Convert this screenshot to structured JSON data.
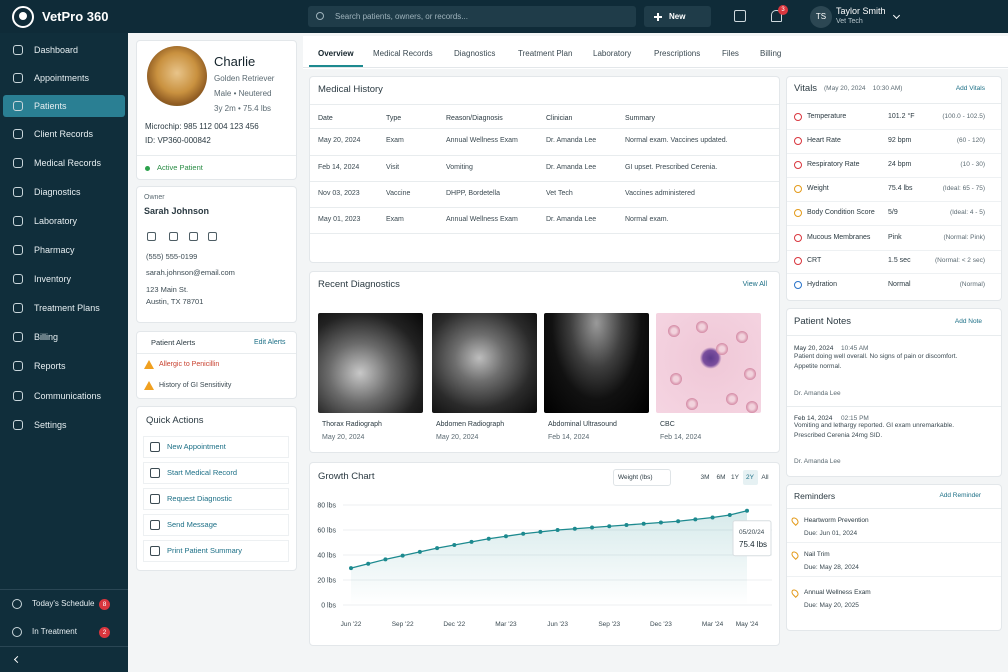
{
  "app": {
    "name": "VetPro 360"
  },
  "topbar": {
    "search_placeholder": "Search patients, owners, or records...",
    "new_button": "New",
    "notifications": 3,
    "user": {
      "initials": "TS",
      "name": "Taylor Smith",
      "role": "Vet Tech"
    }
  },
  "sidebar": {
    "items": [
      "Dashboard",
      "Appointments",
      "Patients",
      "Client Records",
      "Medical Records",
      "Diagnostics",
      "Laboratory",
      "Pharmacy",
      "Inventory",
      "Treatment Plans",
      "Billing",
      "Reports",
      "Communications",
      "Settings"
    ],
    "footer": [
      {
        "label": "Today's Schedule",
        "count": 8
      },
      {
        "label": "In Treatment",
        "count": 2
      }
    ]
  },
  "patient": {
    "name": "Charlie",
    "breed": "Golden Retriever",
    "sex": "Male • Neutered",
    "age_weight": "3y 2m • 75.4 lbs",
    "microchip": "Microchip:  985 112 004 123 456",
    "id": "ID:  VP360-000842",
    "status": "Active Patient"
  },
  "owner": {
    "label": "Owner",
    "name": "Sarah Johnson",
    "phone": "(555) 555-0199",
    "email": "sarah.johnson@email.com",
    "address": [
      "123 Main St.",
      "Austin, TX 78701"
    ]
  },
  "alerts": {
    "title": "Patient Alerts",
    "edit": "Edit Alerts",
    "items": [
      "Allergic to Penicillin",
      "History of GI Sensitivity"
    ]
  },
  "quick_actions": {
    "title": "Quick Actions",
    "items": [
      "New Appointment",
      "Start Medical Record",
      "Request Diagnostic",
      "Send Message",
      "Print Patient Summary"
    ]
  },
  "tabs": [
    "Overview",
    "Medical Records",
    "Diagnostics",
    "Treatment Plan",
    "Laboratory",
    "Prescriptions",
    "Files",
    "Billing"
  ],
  "medical_history": {
    "title": "Medical History",
    "columns": [
      "Date",
      "Type",
      "Reason/Diagnosis",
      "Clinician",
      "Summary"
    ],
    "rows": [
      [
        "May 20, 2024",
        "Exam",
        "Annual Wellness Exam",
        "Dr. Amanda Lee",
        "Normal exam. Vaccines updated."
      ],
      [
        "Feb 14, 2024",
        "Visit",
        "Vomiting",
        "Dr. Amanda Lee",
        "GI upset. Prescribed Cerenia."
      ],
      [
        "Nov 03, 2023",
        "Vaccine",
        "DHPP, Bordetella",
        "Vet Tech",
        "Vaccines administered"
      ],
      [
        "May 01, 2023",
        "Exam",
        "Annual Wellness Exam",
        "Dr. Amanda Lee",
        "Normal exam."
      ]
    ]
  },
  "recent_diagnostics": {
    "title": "Recent Diagnostics",
    "view_all": "View All",
    "items": [
      {
        "name": "Thorax Radiograph",
        "date": "May 20, 2024"
      },
      {
        "name": "Abdomen Radiograph",
        "date": "May 20, 2024"
      },
      {
        "name": "Abdominal Ultrasound",
        "date": "Feb 14, 2024"
      },
      {
        "name": "CBC",
        "date": "Feb 14, 2024"
      }
    ]
  },
  "growth_chart": {
    "title": "Growth Chart",
    "metric": "Weight (lbs)",
    "ranges": [
      "3M",
      "6M",
      "1Y",
      "2Y",
      "All"
    ],
    "tooltip": {
      "date": "05/20/24",
      "value": "75.4 lbs"
    },
    "chart_data": {
      "type": "line",
      "categories": [
        "Jun '22",
        null,
        null,
        "Sep '22",
        null,
        null,
        "Dec '22",
        null,
        null,
        "Mar '23",
        null,
        null,
        "Jun '23",
        null,
        null,
        "Sep '23",
        null,
        null,
        "Dec '23",
        null,
        null,
        "Mar '24",
        null,
        "May '24"
      ],
      "values": [
        29.5,
        33,
        36.5,
        39.5,
        42.5,
        45.5,
        48,
        50.5,
        53,
        55,
        57,
        58.5,
        60,
        61,
        62,
        63,
        64,
        65,
        66,
        67,
        68.5,
        70,
        72,
        75.4
      ],
      "color": "#1d8a8f",
      "ylim": [
        0,
        80
      ],
      "yticks": [
        {
          "value": 0,
          "label": "0 lbs"
        },
        {
          "value": 20,
          "label": "20 lbs"
        },
        {
          "value": 40,
          "label": "40 lbs"
        },
        {
          "value": 60,
          "label": "60 lbs"
        },
        {
          "value": 80,
          "label": "80 lbs"
        }
      ],
      "grid": true
    }
  },
  "vitals": {
    "title": "Vitals",
    "timestamp": "(May 20, 2024    10:30 AM)",
    "add": "Add Vitals",
    "items": [
      {
        "name": "Temperature",
        "value": "101.2 °F",
        "range": "(100.0 - 102.5)"
      },
      {
        "name": "Heart Rate",
        "value": "92 bpm",
        "range": "(60 - 120)"
      },
      {
        "name": "Respiratory Rate",
        "value": "24 bpm",
        "range": "(10 - 30)"
      },
      {
        "name": "Weight",
        "value": "75.4 lbs",
        "range": "(Ideal: 65 - 75)"
      },
      {
        "name": "Body Condition Score",
        "value": "5/9",
        "range": "(Ideal: 4 - 5)"
      },
      {
        "name": "Mucous Membranes",
        "value": "Pink",
        "range": "(Normal: Pink)"
      },
      {
        "name": "CRT",
        "value": "1.5 sec",
        "range": "(Normal: < 2 sec)"
      },
      {
        "name": "Hydration",
        "value": "Normal",
        "range": "(Normal)"
      }
    ]
  },
  "notes": {
    "title": "Patient Notes",
    "add": "Add Note",
    "items": [
      {
        "date": "May 20, 2024",
        "time": "10:45 AM",
        "text": "Patient doing well overall. No signs of pain or discomfort. Appetite normal.",
        "author": "Dr. Amanda Lee"
      },
      {
        "date": "Feb 14, 2024",
        "time": "02:15 PM",
        "text": "Vomiting and lethargy reported. GI exam unremarkable. Prescribed Cerenia 24mg SID.",
        "author": "Dr. Amanda Lee"
      }
    ]
  },
  "reminders": {
    "title": "Reminders",
    "add": "Add Reminder",
    "items": [
      {
        "name": "Heartworm Prevention",
        "due": "Due: Jun 01, 2024"
      },
      {
        "name": "Nail Trim",
        "due": "Due: May 28, 2024"
      },
      {
        "name": "Annual Wellness Exam",
        "due": "Due: May 20, 2025"
      }
    ]
  }
}
